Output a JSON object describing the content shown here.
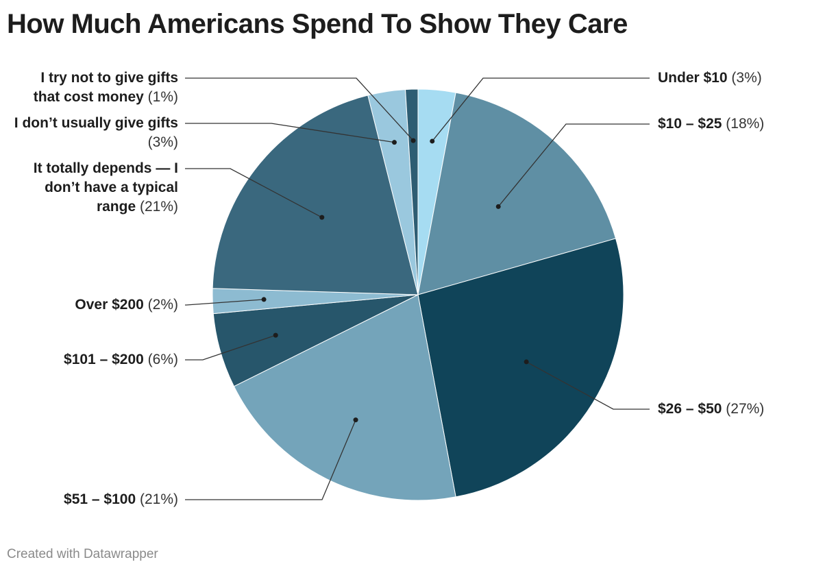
{
  "chart_data": {
    "type": "pie",
    "title": "How Much Americans Spend To Show They Care",
    "slices": [
      {
        "label": "Under $10",
        "value": 3,
        "pct_label": "(3%)",
        "color": "#a6dcf2"
      },
      {
        "label": "$10 – $25",
        "value": 18,
        "pct_label": "(18%)",
        "color": "#5f8fa4"
      },
      {
        "label": "$26 – $50",
        "value": 27,
        "pct_label": "(27%)",
        "color": "#104459"
      },
      {
        "label": "$51 – $100",
        "value": 21,
        "pct_label": "(21%)",
        "color": "#74a4ba"
      },
      {
        "label": "$101 – $200",
        "value": 6,
        "pct_label": "(6%)",
        "color": "#27566b"
      },
      {
        "label": "Over $200",
        "value": 2,
        "pct_label": "(2%)",
        "color": "#8dbbd1"
      },
      {
        "label": "It totally depends — I don’t have a typical range",
        "value": 21,
        "pct_label": "(21%)",
        "color": "#3a687e"
      },
      {
        "label": "I don’t usually give gifts",
        "value": 3,
        "pct_label": "(3%)",
        "color": "#9ac8de"
      },
      {
        "label": "I try not to give gifts that cost money",
        "value": 1,
        "pct_label": "(1%)",
        "color": "#2d5d73"
      }
    ]
  },
  "footer": "Created with Datawrapper"
}
